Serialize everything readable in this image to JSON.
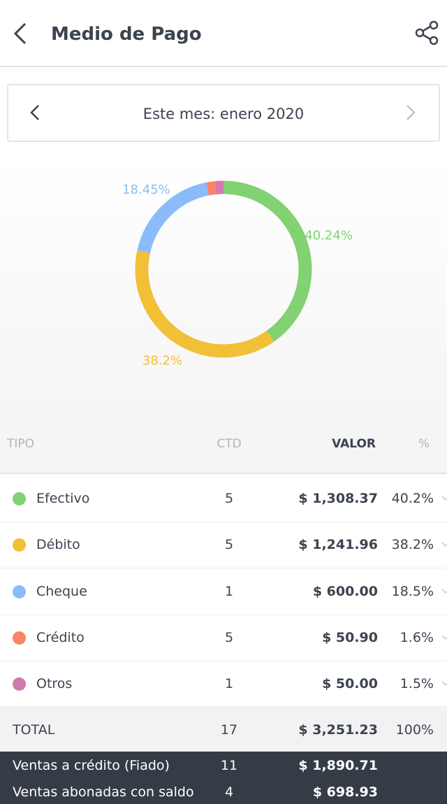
{
  "header": {
    "title": "Medio de Pago"
  },
  "period": "Este mes: enero 2020",
  "chart_data": {
    "type": "donut",
    "categories": [
      null,
      null,
      null,
      null,
      null
    ],
    "values": [
      40.24,
      38.2,
      18.45,
      1.57,
      1.54
    ],
    "value_labels": [
      "40.24%",
      "38.2%",
      "18.45%",
      null,
      null
    ],
    "colors": [
      "#82d173",
      "#f2c037",
      "#8bbcf9",
      "#fb8466",
      "#d279ad"
    ]
  },
  "table": {
    "columns": [
      "TIPO",
      "CTD",
      "VALOR",
      "%"
    ],
    "rows": [
      {
        "name": "Efectivo",
        "color": "#82d173",
        "ctd": "5",
        "valor": "$ 1,308.37",
        "pct": "40.2%"
      },
      {
        "name": "Débito",
        "color": "#f2c037",
        "ctd": "5",
        "valor": "$ 1,241.96",
        "pct": "38.2%"
      },
      {
        "name": "Cheque",
        "color": "#8bbcf9",
        "ctd": "1",
        "valor": "$ 600.00",
        "pct": "18.5%"
      },
      {
        "name": "Crédito",
        "color": "#fb8466",
        "ctd": "5",
        "valor": "$ 50.90",
        "pct": "1.6%"
      },
      {
        "name": "Otros",
        "color": "#d279ad",
        "ctd": "1",
        "valor": "$ 50.00",
        "pct": "1.5%"
      }
    ],
    "total": {
      "name": "TOTAL",
      "ctd": "17",
      "valor": "$ 3,251.23",
      "pct": "100%"
    }
  },
  "footer": [
    {
      "name": "Ventas a crédito (Fiado)",
      "ctd": "11",
      "valor": "$ 1,890.71"
    },
    {
      "name": "Ventas abonadas con saldo",
      "ctd": "4",
      "valor": "$ 698.93"
    }
  ]
}
